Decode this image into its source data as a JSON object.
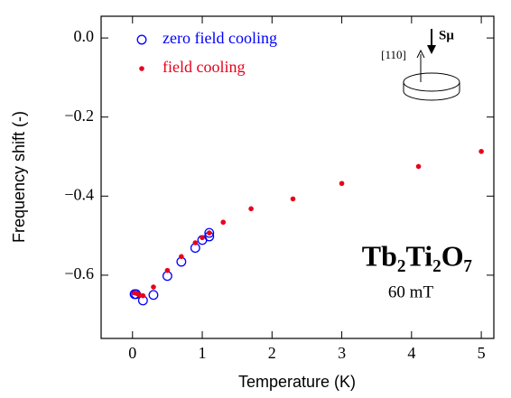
{
  "chart_data": {
    "type": "scatter",
    "x_label": "Temperature (K)",
    "y_label": "Frequency  shift (-)",
    "xlim": [
      -0.45,
      5.18
    ],
    "ylim": [
      -0.76,
      0.055
    ],
    "xticks": [
      0,
      1,
      2,
      3,
      4,
      5
    ],
    "yticks": [
      {
        "value": 0,
        "label": "0.0"
      },
      {
        "value": -0.2,
        "label": "−0.2"
      },
      {
        "value": -0.4,
        "label": "−0.4"
      },
      {
        "value": -0.6,
        "label": "−0.6"
      }
    ],
    "legend": "upper left",
    "series": [
      {
        "name": "zero field cooling",
        "color": "#0000ff",
        "marker": "open-circle",
        "x": [
          0.03,
          0.05,
          0.15,
          0.3,
          0.5,
          0.7,
          0.9,
          1.0,
          1.1,
          1.1
        ],
        "values": [
          -0.648,
          -0.648,
          -0.664,
          -0.65,
          -0.602,
          -0.566,
          -0.531,
          -0.511,
          -0.502,
          -0.493
        ]
      },
      {
        "name": "field cooling",
        "color": "#e8001c",
        "marker": "dot",
        "x": [
          0.03,
          0.07,
          0.1,
          0.15,
          0.3,
          0.5,
          0.7,
          0.9,
          1.0,
          1.1,
          1.3,
          1.7,
          2.3,
          3.0,
          4.1,
          5.0
        ],
        "values": [
          -0.645,
          -0.647,
          -0.65,
          -0.652,
          -0.63,
          -0.588,
          -0.553,
          -0.518,
          -0.505,
          -0.493,
          -0.466,
          -0.432,
          -0.407,
          -0.368,
          -0.325,
          -0.287
        ]
      }
    ],
    "annotations": {
      "compound": "Tb₂Ti₂O₇",
      "field": "60 mT",
      "direction": "[110]",
      "spin": "Sμ"
    }
  }
}
